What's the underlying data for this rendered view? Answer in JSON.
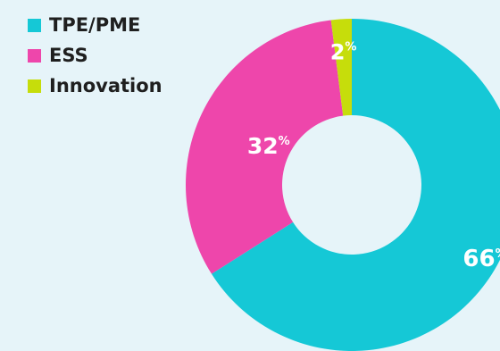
{
  "chart_data": {
    "type": "pie",
    "subtype": "donut",
    "categories": [
      "TPE/PME",
      "ESS",
      "Innovation"
    ],
    "values": [
      66,
      32,
      2
    ],
    "value_suffix": "%",
    "colors": [
      "#15c8d6",
      "#ee46ab",
      "#c6dd0b"
    ],
    "legend": {
      "placement": "top-left",
      "entries": [
        "TPE/PME",
        "ESS",
        "Innovation"
      ]
    },
    "data_labels": [
      "66",
      "32",
      "2"
    ],
    "start_angle": "12 o'clock",
    "direction": "clockwise",
    "background": "#e6f4f9"
  }
}
